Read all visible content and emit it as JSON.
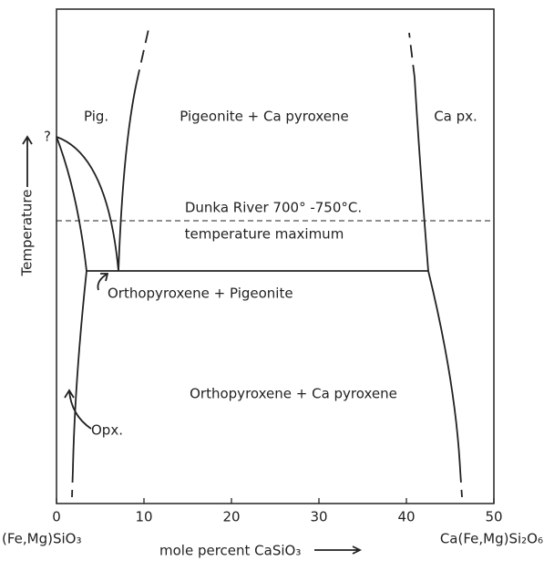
{
  "title_labels": {
    "question": "?",
    "pig": "Pig.",
    "pig_capx": "Pigeonite + Ca pyroxene",
    "capx": "Ca px.",
    "dunka": "Dunka River 700° -750°C.",
    "tmax": "temperature maximum",
    "opx_pig": "Orthopyroxene + Pigeonite",
    "opx_capx": "Orthopyroxene + Ca pyroxene",
    "opx": "Opx."
  },
  "axis": {
    "xlim": [
      0,
      50
    ],
    "xticks": [
      0,
      10,
      20,
      30,
      40,
      50
    ],
    "ylabel": "Temperature",
    "left_end": "(Fe,Mg)SiO₃",
    "right_end": "Ca(Fe,Mg)Si₂O₆",
    "xlabel": "mole percent CaSiO₃"
  }
}
